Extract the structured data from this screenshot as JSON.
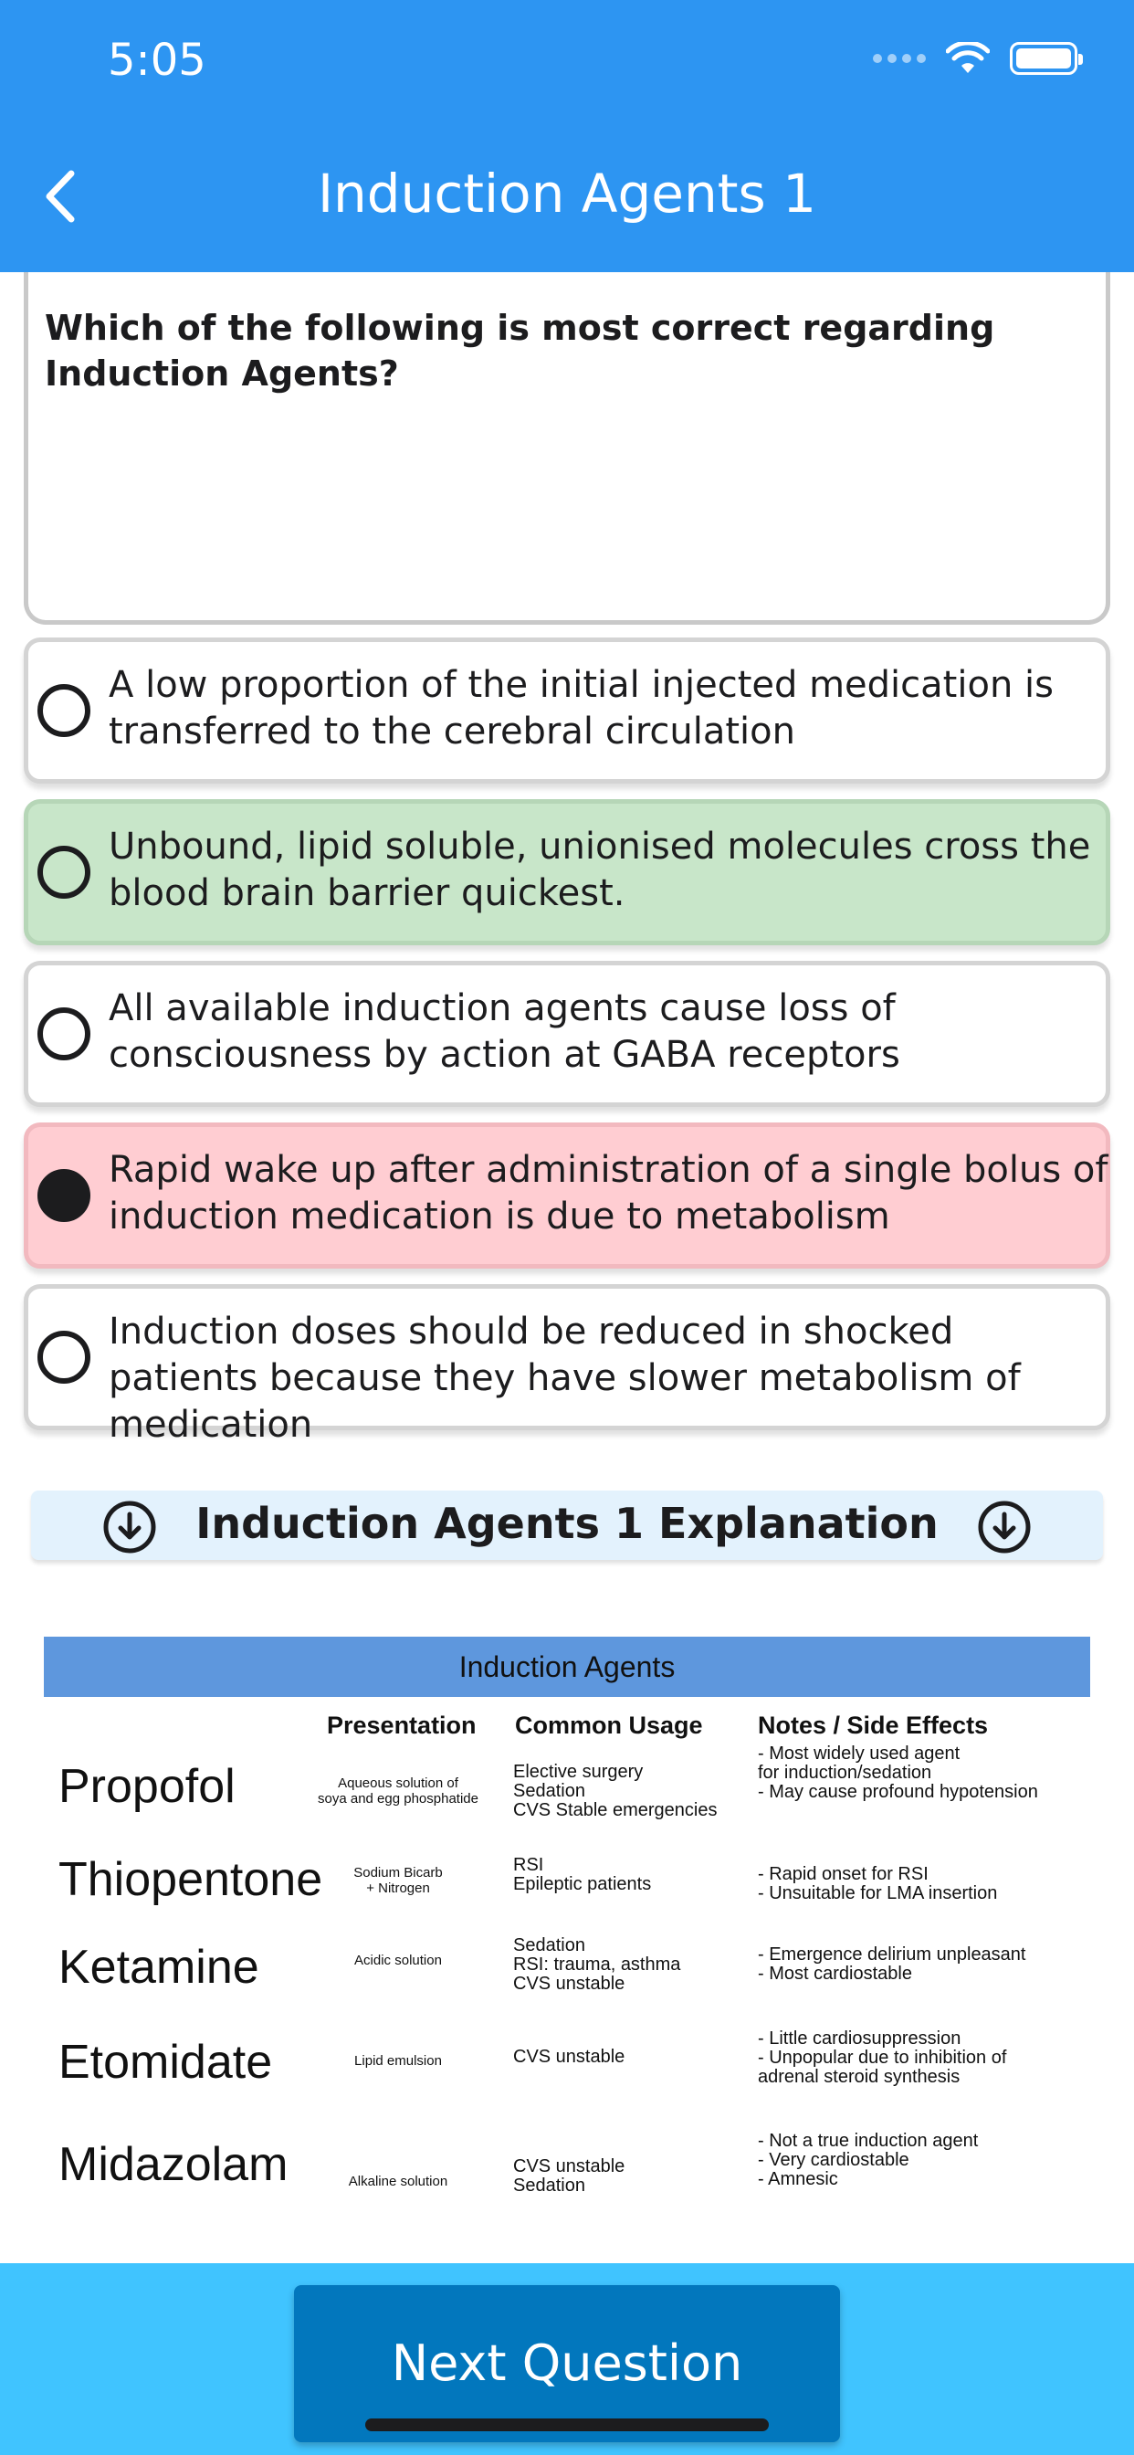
{
  "status_bar": {
    "time": "5:05"
  },
  "nav": {
    "title": "Induction Agents 1"
  },
  "question": {
    "text": "Which of the following is most correct regarding Induction Agents?"
  },
  "options": [
    {
      "text": "A low proportion of the initial injected medication is transferred to the cerebral circulation",
      "state": "neutral",
      "selected": false
    },
    {
      "text": "Unbound, lipid soluble, unionised molecules cross the blood brain barrier quickest.",
      "state": "correct",
      "selected": false
    },
    {
      "text": "All available induction agents cause loss of consciousness by action at GABA receptors",
      "state": "neutral",
      "selected": false
    },
    {
      "text": "Rapid wake up after administration of a single bolus of induction medication is due to metabolism",
      "state": "wrong",
      "selected": true
    },
    {
      "text": "Induction doses should be reduced in shocked patients because they have slower metabolism of medication",
      "state": "neutral",
      "selected": false
    }
  ],
  "explanation": {
    "title": "Induction Agents 1 Explanation",
    "table": {
      "title": "Induction Agents",
      "headers": [
        "Presentation",
        "Common Usage",
        "Notes / Side Effects"
      ],
      "rows": [
        {
          "drug": "Propofol",
          "presentation": "Aqueous solution of\nsoya and egg phosphatide",
          "usage": [
            "Elective surgery",
            "Sedation",
            "CVS Stable emergencies"
          ],
          "notes": [
            "- Most widely used agent",
            "for induction/sedation",
            "- May cause profound hypotension"
          ]
        },
        {
          "drug": "Thiopentone",
          "presentation": "Sodium Bicarb\n+ Nitrogen",
          "usage": [
            "RSI",
            "Epileptic patients"
          ],
          "notes": [
            "- Rapid onset for RSI",
            "- Unsuitable for LMA insertion"
          ]
        },
        {
          "drug": "Ketamine",
          "presentation": "Acidic solution",
          "usage": [
            "Sedation",
            "RSI: trauma, asthma",
            "CVS unstable"
          ],
          "notes": [
            "- Emergence delirium unpleasant",
            "- Most cardiostable"
          ]
        },
        {
          "drug": "Etomidate",
          "presentation": "Lipid emulsion",
          "usage": [
            "CVS unstable"
          ],
          "notes": [
            "- Little cardiosuppression",
            "- Unpopular due to inhibition of",
            "adrenal steroid synthesis"
          ]
        },
        {
          "drug": "Midazolam",
          "presentation": "Alkaline solution",
          "usage": [
            "CVS unstable",
            "Sedation"
          ],
          "notes": [
            "- Not a true induction agent",
            "- Very cardiostable",
            "- Amnesic"
          ]
        }
      ]
    }
  },
  "footer": {
    "next_label": "Next Question"
  },
  "colors": {
    "header": "#2d95f2",
    "correct": "#c8e6c9",
    "wrong": "#ffcdd2",
    "footer": "#40c4ff",
    "button": "#0277bd"
  },
  "icons": [
    "chevron-left-icon",
    "wifi-icon",
    "battery-icon",
    "signal-icon",
    "download-circle-icon"
  ]
}
